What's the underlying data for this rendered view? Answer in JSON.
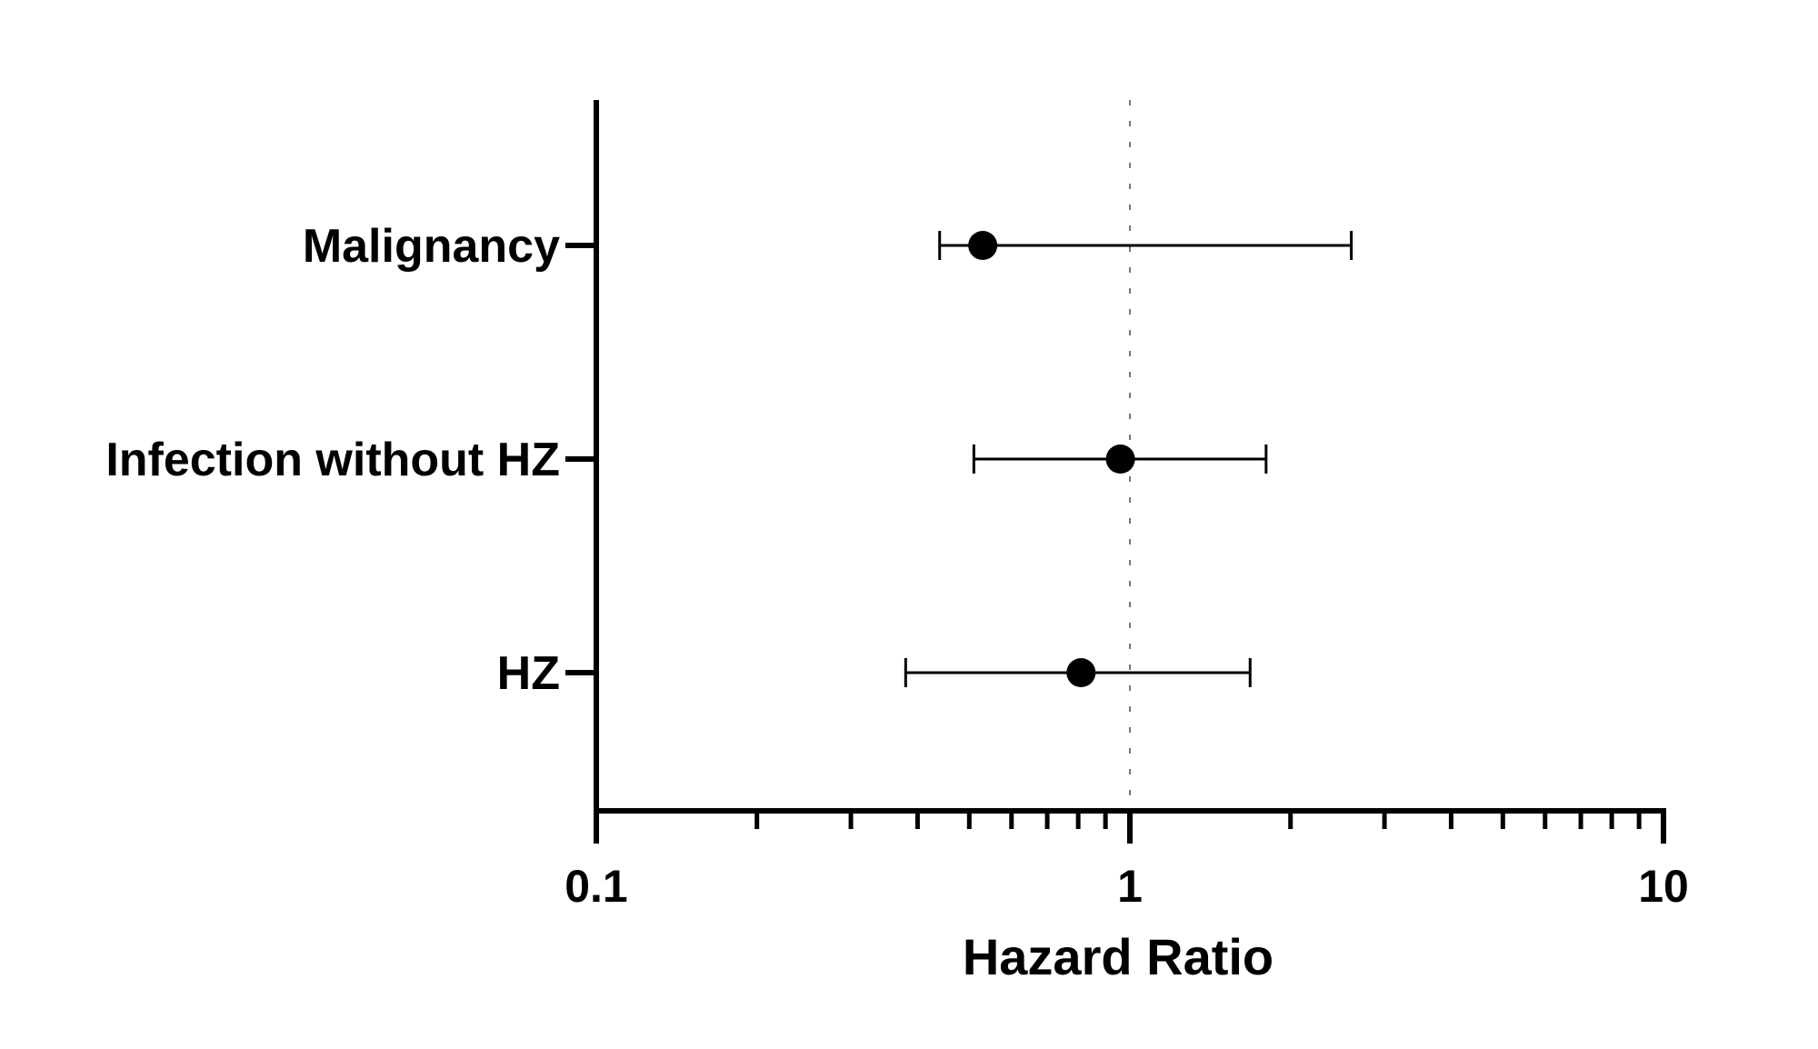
{
  "chart_data": {
    "type": "forest",
    "xlabel": "Hazard Ratio",
    "xscale": "log",
    "xlim": [
      0.1,
      10
    ],
    "x_tick_labels": [
      "0.1",
      "1",
      "10"
    ],
    "reference_line": 1,
    "categories": [
      "Malignancy",
      "Infection without HZ",
      "HZ"
    ],
    "series": [
      {
        "points": [
          {
            "label": "Malignancy",
            "estimate": 0.53,
            "ci_low": 0.44,
            "ci_high": 2.6
          },
          {
            "label": "Infection without HZ",
            "estimate": 0.96,
            "ci_low": 0.51,
            "ci_high": 1.8
          },
          {
            "label": "HZ",
            "estimate": 0.81,
            "ci_low": 0.38,
            "ci_high": 1.68
          }
        ]
      }
    ],
    "grid": false
  }
}
